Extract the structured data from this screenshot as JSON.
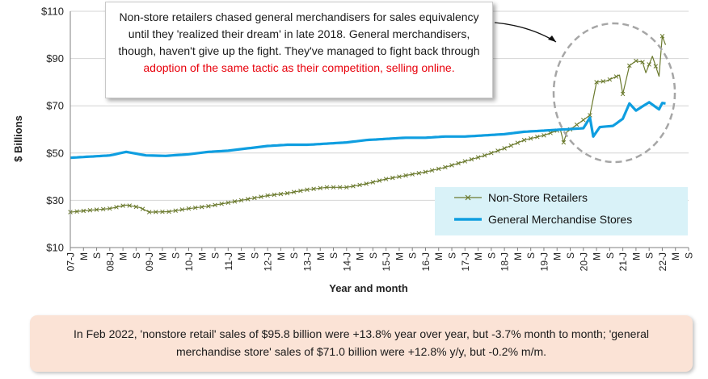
{
  "callout": {
    "text_main": "Non-store retailers chased general merchandisers for sales equivalency until they 'realized their dream' in late 2018. General merchandisers, though, haven't give up the fight. They've managed to fight back through ",
    "text_red": "adoption of the same tactic as their competition, selling online."
  },
  "footer": {
    "text": "In Feb 2022, 'nonstore retail' sales of $95.8 billion were +13.8% year over year, but -3.7% month to month; 'general merchandise store' sales of $71.0 billion were +12.8% y/y, but -0.2% m/m."
  },
  "colors": {
    "nonstore": "#6b7a2e",
    "general": "#0f9ee0",
    "legend_bg": "#d9f2f8",
    "footer_bg": "#fbe3d6",
    "highlight": "#e8000b"
  },
  "chart_data": {
    "type": "line",
    "xlabel": "Year and month",
    "ylabel": "$ Billions",
    "ylim": [
      10,
      110
    ],
    "y_ticks": [
      10,
      30,
      50,
      70,
      90,
      110
    ],
    "y_tick_labels": [
      "$10",
      "$30",
      "$50",
      "$70",
      "$90",
      "$110"
    ],
    "x_start": "2007-01",
    "x_end": "2022-09",
    "x_tick_labels": [
      "07-J",
      "M",
      "S",
      "08-J",
      "M",
      "S",
      "09-J",
      "M",
      "S",
      "10-J",
      "M",
      "S",
      "11-J",
      "M",
      "S",
      "12-J",
      "M",
      "S",
      "13-J",
      "M",
      "S",
      "14-J",
      "M",
      "S",
      "15-J",
      "M",
      "S",
      "16-J",
      "M",
      "S",
      "17-J",
      "M",
      "S",
      "18-J",
      "M",
      "S",
      "19-J",
      "M",
      "S",
      "20-J",
      "M",
      "S",
      "21-J",
      "M",
      "S",
      "22-J",
      "M",
      "S"
    ],
    "grid": "horizontal",
    "legend_position": "bottom-right",
    "series": [
      {
        "name": "Non-Store Retailers",
        "marker": "x",
        "points": [
          [
            "2007-01",
            25.0
          ],
          [
            "2007-07",
            25.8
          ],
          [
            "2008-01",
            26.5
          ],
          [
            "2008-06",
            28.0
          ],
          [
            "2008-10",
            27.0
          ],
          [
            "2009-01",
            25.0
          ],
          [
            "2009-07",
            25.2
          ],
          [
            "2010-01",
            26.5
          ],
          [
            "2010-07",
            27.5
          ],
          [
            "2011-01",
            29.0
          ],
          [
            "2011-07",
            30.5
          ],
          [
            "2012-01",
            32.0
          ],
          [
            "2012-07",
            33.0
          ],
          [
            "2013-01",
            34.5
          ],
          [
            "2013-07",
            35.5
          ],
          [
            "2014-01",
            35.5
          ],
          [
            "2014-07",
            37.0
          ],
          [
            "2015-01",
            39.0
          ],
          [
            "2015-07",
            40.5
          ],
          [
            "2016-01",
            42.0
          ],
          [
            "2016-07",
            44.0
          ],
          [
            "2017-01",
            46.5
          ],
          [
            "2017-07",
            49.0
          ],
          [
            "2018-01",
            52.0
          ],
          [
            "2018-07",
            55.5
          ],
          [
            "2019-01",
            57.5
          ],
          [
            "2019-06",
            60.0
          ],
          [
            "2019-07",
            54.5
          ],
          [
            "2019-08",
            59.0
          ],
          [
            "2020-01",
            64.0
          ],
          [
            "2020-03",
            66.0
          ],
          [
            "2020-05",
            80.0
          ],
          [
            "2020-08",
            80.5
          ],
          [
            "2020-12",
            83.0
          ],
          [
            "2021-01",
            75.0
          ],
          [
            "2021-03",
            87.0
          ],
          [
            "2021-05",
            89.0
          ],
          [
            "2021-07",
            88.5
          ],
          [
            "2021-08",
            84.0
          ],
          [
            "2021-10",
            91.0
          ],
          [
            "2021-12",
            82.5
          ],
          [
            "2022-01",
            99.5
          ],
          [
            "2022-02",
            95.8
          ]
        ]
      },
      {
        "name": "General Merchandise Stores",
        "points": [
          [
            "2007-01",
            48.0
          ],
          [
            "2007-07",
            48.5
          ],
          [
            "2008-01",
            49.0
          ],
          [
            "2008-06",
            50.5
          ],
          [
            "2008-12",
            49.0
          ],
          [
            "2009-06",
            48.8
          ],
          [
            "2010-01",
            49.5
          ],
          [
            "2010-07",
            50.5
          ],
          [
            "2011-01",
            51.0
          ],
          [
            "2011-07",
            52.0
          ],
          [
            "2012-01",
            53.0
          ],
          [
            "2012-07",
            53.5
          ],
          [
            "2013-01",
            53.5
          ],
          [
            "2013-07",
            54.0
          ],
          [
            "2014-01",
            54.5
          ],
          [
            "2014-07",
            55.5
          ],
          [
            "2015-01",
            56.0
          ],
          [
            "2015-07",
            56.5
          ],
          [
            "2016-01",
            56.5
          ],
          [
            "2016-07",
            57.0
          ],
          [
            "2017-01",
            57.0
          ],
          [
            "2017-07",
            57.5
          ],
          [
            "2018-01",
            58.0
          ],
          [
            "2018-07",
            59.0
          ],
          [
            "2019-01",
            59.5
          ],
          [
            "2019-07",
            60.0
          ],
          [
            "2020-01",
            60.5
          ],
          [
            "2020-03",
            65.0
          ],
          [
            "2020-04",
            57.0
          ],
          [
            "2020-06",
            61.0
          ],
          [
            "2020-10",
            61.5
          ],
          [
            "2021-01",
            64.5
          ],
          [
            "2021-03",
            71.0
          ],
          [
            "2021-05",
            68.0
          ],
          [
            "2021-09",
            71.5
          ],
          [
            "2021-12",
            68.5
          ],
          [
            "2022-01",
            71.2
          ],
          [
            "2022-02",
            71.0
          ]
        ]
      }
    ]
  }
}
